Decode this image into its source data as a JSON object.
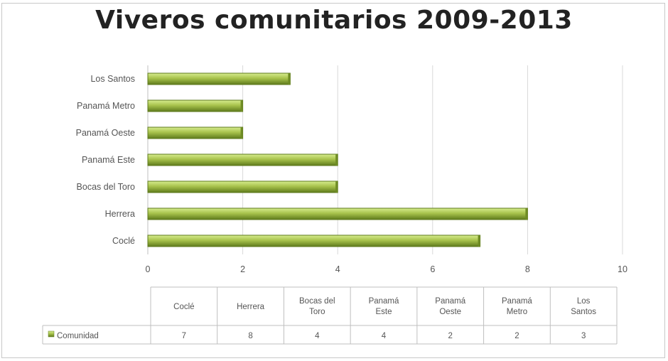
{
  "chart_data": {
    "type": "bar",
    "orientation": "horizontal",
    "title": "Viveros comunitarios 2009-2013",
    "categories": [
      "Coclé",
      "Herrera",
      "Bocas del Toro",
      "Panamá Este",
      "Panamá Oeste",
      "Panamá Metro",
      "Los Santos"
    ],
    "series": [
      {
        "name": "Comunidad",
        "values": [
          7,
          8,
          4,
          4,
          2,
          2,
          3
        ]
      }
    ],
    "xlim": [
      0,
      10
    ],
    "xticks": [
      0,
      2,
      4,
      6,
      8,
      10
    ],
    "grid": true,
    "data_table": true,
    "colors": {
      "bar": "#a5c24a",
      "bar_edge": "#5e7a1c",
      "grid": "#d9d9d9"
    }
  }
}
